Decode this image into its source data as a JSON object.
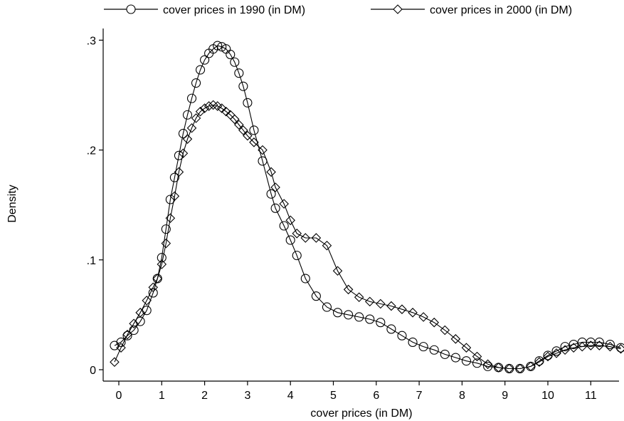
{
  "chart_data": {
    "type": "line",
    "title": "",
    "xlabel": "cover prices (in DM)",
    "ylabel": "Density",
    "xlim": [
      -0.2,
      11.85
    ],
    "ylim": [
      -0.01,
      0.305
    ],
    "x_ticks": [
      0,
      1,
      2,
      3,
      4,
      5,
      6,
      7,
      8,
      9,
      10,
      11
    ],
    "x_tick_labels": [
      "0",
      "1",
      "2",
      "3",
      "4",
      "5",
      "6",
      "7",
      "8",
      "9",
      "10",
      "11"
    ],
    "y_ticks": [
      0,
      0.1,
      0.2,
      0.3
    ],
    "y_tick_labels": [
      "0",
      ".1",
      ".2",
      ".3"
    ],
    "grid": false,
    "legend_position": "top",
    "series": [
      {
        "name": "cover prices in 1990 (in DM)",
        "marker": "circle",
        "x": [
          -0.1,
          0.05,
          0.2,
          0.35,
          0.5,
          0.65,
          0.8,
          0.9,
          1.0,
          1.1,
          1.2,
          1.3,
          1.4,
          1.5,
          1.6,
          1.7,
          1.8,
          1.9,
          2.0,
          2.1,
          2.2,
          2.3,
          2.4,
          2.5,
          2.6,
          2.7,
          2.8,
          2.9,
          3.0,
          3.15,
          3.35,
          3.55,
          3.65,
          3.85,
          4.0,
          4.15,
          4.35,
          4.6,
          4.85,
          5.1,
          5.35,
          5.6,
          5.85,
          6.1,
          6.35,
          6.6,
          6.85,
          7.1,
          7.35,
          7.6,
          7.85,
          8.1,
          8.35,
          8.6,
          8.85,
          9.1,
          9.35,
          9.6,
          9.8,
          10.0,
          10.2,
          10.4,
          10.6,
          10.8,
          11.0,
          11.2,
          11.45,
          11.7
        ],
        "y": [
          0.022,
          0.025,
          0.031,
          0.036,
          0.044,
          0.054,
          0.07,
          0.083,
          0.102,
          0.128,
          0.155,
          0.175,
          0.195,
          0.215,
          0.232,
          0.247,
          0.261,
          0.273,
          0.282,
          0.288,
          0.292,
          0.295,
          0.294,
          0.292,
          0.287,
          0.28,
          0.27,
          0.258,
          0.243,
          0.218,
          0.19,
          0.16,
          0.147,
          0.131,
          0.118,
          0.104,
          0.083,
          0.067,
          0.057,
          0.052,
          0.05,
          0.048,
          0.046,
          0.043,
          0.037,
          0.031,
          0.025,
          0.021,
          0.018,
          0.014,
          0.011,
          0.008,
          0.006,
          0.003,
          0.002,
          0.001,
          0.001,
          0.003,
          0.008,
          0.013,
          0.017,
          0.021,
          0.023,
          0.025,
          0.025,
          0.025,
          0.023,
          0.02
        ]
      },
      {
        "name": "cover prices in 2000 (in DM)",
        "marker": "diamond",
        "x": [
          -0.1,
          0.05,
          0.2,
          0.35,
          0.5,
          0.65,
          0.8,
          0.9,
          1.0,
          1.1,
          1.2,
          1.3,
          1.4,
          1.5,
          1.6,
          1.7,
          1.8,
          1.9,
          2.0,
          2.1,
          2.2,
          2.3,
          2.4,
          2.5,
          2.6,
          2.7,
          2.8,
          2.9,
          3.0,
          3.15,
          3.35,
          3.55,
          3.65,
          3.85,
          4.0,
          4.15,
          4.35,
          4.6,
          4.85,
          5.1,
          5.35,
          5.6,
          5.85,
          6.1,
          6.35,
          6.6,
          6.85,
          7.1,
          7.35,
          7.6,
          7.85,
          8.1,
          8.35,
          8.6,
          8.85,
          9.1,
          9.35,
          9.6,
          9.8,
          10.0,
          10.2,
          10.4,
          10.6,
          10.8,
          11.0,
          11.2,
          11.45,
          11.7
        ],
        "y": [
          0.007,
          0.02,
          0.032,
          0.042,
          0.052,
          0.063,
          0.075,
          0.083,
          0.096,
          0.115,
          0.138,
          0.158,
          0.18,
          0.197,
          0.21,
          0.22,
          0.229,
          0.235,
          0.238,
          0.24,
          0.241,
          0.24,
          0.238,
          0.235,
          0.232,
          0.228,
          0.223,
          0.218,
          0.213,
          0.207,
          0.2,
          0.18,
          0.166,
          0.151,
          0.136,
          0.124,
          0.12,
          0.12,
          0.113,
          0.09,
          0.073,
          0.066,
          0.062,
          0.06,
          0.058,
          0.055,
          0.052,
          0.048,
          0.043,
          0.036,
          0.028,
          0.02,
          0.012,
          0.005,
          0.002,
          0.001,
          0.001,
          0.003,
          0.007,
          0.012,
          0.015,
          0.018,
          0.02,
          0.021,
          0.022,
          0.022,
          0.021,
          0.019
        ]
      }
    ]
  }
}
